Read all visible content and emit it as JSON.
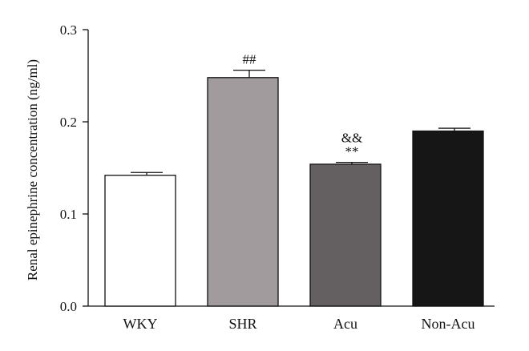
{
  "chart_data": {
    "type": "bar",
    "title": "",
    "xlabel": "",
    "ylabel": "Renal epinephrine concentration (ng/ml)",
    "ylim": [
      0,
      0.3
    ],
    "yticks": [
      "0.0",
      "0.1",
      "0.2",
      "0.3"
    ],
    "ytick_values": [
      0,
      0.1,
      0.2,
      0.3
    ],
    "categories": [
      "WKY",
      "SHR",
      "Acu",
      "Non-Acu"
    ],
    "values": [
      0.142,
      0.248,
      0.154,
      0.19
    ],
    "errors": [
      0.003,
      0.008,
      0.002,
      0.003
    ],
    "colors": [
      "#ffffff",
      "#a19b9d",
      "#646061",
      "#161616"
    ],
    "annotations": [
      {
        "category": "SHR",
        "lines": [
          "##"
        ]
      },
      {
        "category": "Acu",
        "lines": [
          "&&",
          "**"
        ]
      }
    ],
    "grid": false,
    "legend": "none"
  }
}
